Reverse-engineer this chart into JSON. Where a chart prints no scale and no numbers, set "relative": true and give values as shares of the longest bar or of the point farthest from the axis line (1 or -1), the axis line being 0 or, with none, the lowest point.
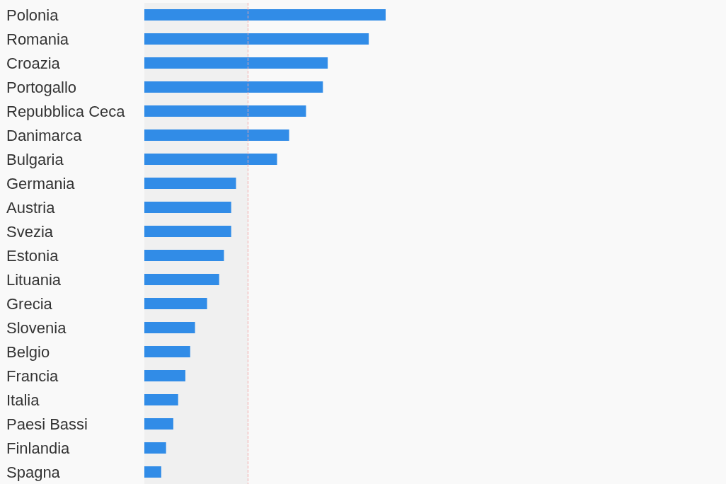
{
  "chart_data": {
    "type": "bar",
    "orientation": "horizontal",
    "relative": true,
    "categories": [
      "Polonia",
      "Romania",
      "Croazia",
      "Portogallo",
      "Repubblica Ceca",
      "Danimarca",
      "Bulgaria",
      "Germania",
      "Austria",
      "Svezia",
      "Estonia",
      "Lituania",
      "Grecia",
      "Slovenia",
      "Belgio",
      "Francia",
      "Italia",
      "Paesi Bassi",
      "Finlandia",
      "Spagna"
    ],
    "values": [
      1,
      0.93,
      0.76,
      0.74,
      0.67,
      0.6,
      0.55,
      0.38,
      0.36,
      0.36,
      0.33,
      0.31,
      0.26,
      0.21,
      0.19,
      0.17,
      0.14,
      0.12,
      0.09,
      0.07
    ],
    "color": "#318ce7",
    "ref_lines": [
      {
        "axis": "x",
        "value": 0.43,
        "color": "#f4a6a6",
        "line_style": "dashed"
      }
    ],
    "bands": [
      {
        "axis": "x",
        "from": 0,
        "to": 0.43,
        "color": "#f0f0f0"
      }
    ]
  }
}
